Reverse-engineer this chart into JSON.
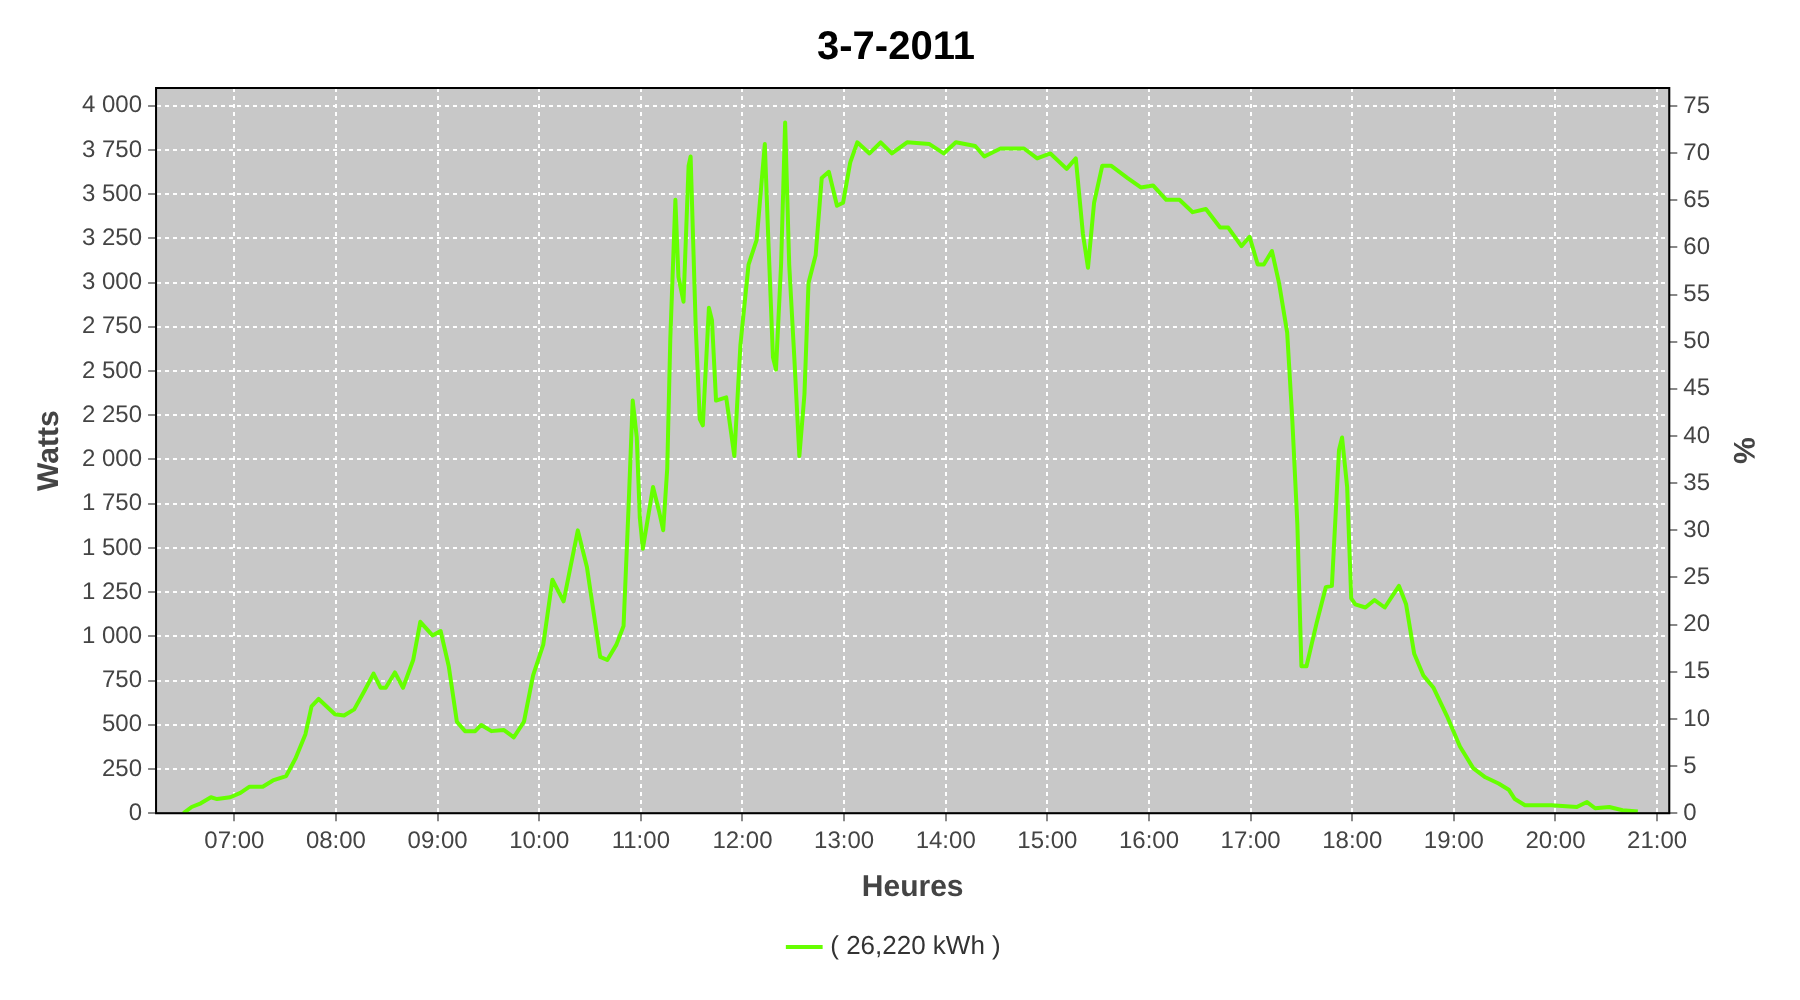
{
  "chart_data": {
    "type": "line",
    "title": "3-7-2011",
    "xlabel": "Heures",
    "ylabel": "Watts",
    "y2label": "%",
    "xlim": [
      6.23,
      21.12
    ],
    "xticks": [
      {
        "value": 7,
        "label": "07:00"
      },
      {
        "value": 8,
        "label": "08:00"
      },
      {
        "value": 9,
        "label": "09:00"
      },
      {
        "value": 10,
        "label": "10:00"
      },
      {
        "value": 11,
        "label": "11:00"
      },
      {
        "value": 12,
        "label": "12:00"
      },
      {
        "value": 13,
        "label": "13:00"
      },
      {
        "value": 14,
        "label": "14:00"
      },
      {
        "value": 15,
        "label": "15:00"
      },
      {
        "value": 16,
        "label": "16:00"
      },
      {
        "value": 17,
        "label": "17:00"
      },
      {
        "value": 18,
        "label": "18:00"
      },
      {
        "value": 19,
        "label": "19:00"
      },
      {
        "value": 20,
        "label": "20:00"
      },
      {
        "value": 21,
        "label": "21:00"
      }
    ],
    "ylim": [
      0,
      4100
    ],
    "yticks": [
      0,
      250,
      500,
      750,
      {
        "value": 1000,
        "label": "1 000"
      },
      {
        "value": 1250,
        "label": "1 250"
      },
      {
        "value": 1500,
        "label": "1 500"
      },
      {
        "value": 1750,
        "label": "1 750"
      },
      {
        "value": 2000,
        "label": "2 000"
      },
      {
        "value": 2250,
        "label": "2 250"
      },
      {
        "value": 2500,
        "label": "2 500"
      },
      {
        "value": 2750,
        "label": "2 750"
      },
      {
        "value": 3000,
        "label": "3 000"
      },
      {
        "value": 3250,
        "label": "3 250"
      },
      {
        "value": 3500,
        "label": "3 500"
      },
      {
        "value": 3750,
        "label": "3 750"
      },
      {
        "value": 4000,
        "label": "4 000"
      }
    ],
    "y2lim": [
      0,
      76.9
    ],
    "y2ticks": [
      0,
      5,
      10,
      15,
      20,
      25,
      30,
      35,
      40,
      45,
      50,
      55,
      60,
      65,
      70,
      75
    ],
    "grid": true,
    "legend": "bottom",
    "line_style": "solid",
    "series": [
      {
        "name": "( 26,220 kWh )",
        "color": "#66ff00",
        "x": [
          6.5,
          6.58,
          6.67,
          6.77,
          6.83,
          6.96,
          7.06,
          7.15,
          7.28,
          7.38,
          7.51,
          7.6,
          7.7,
          7.76,
          7.83,
          7.99,
          8.08,
          8.18,
          8.28,
          8.37,
          8.44,
          8.49,
          8.58,
          8.66,
          8.76,
          8.83,
          8.95,
          9.03,
          9.11,
          9.19,
          9.27,
          9.37,
          9.43,
          9.53,
          9.65,
          9.75,
          9.85,
          9.94,
          10.04,
          10.13,
          10.24,
          10.38,
          10.47,
          10.6,
          10.67,
          10.76,
          10.83,
          10.88,
          10.92,
          10.96,
          10.99,
          11.02,
          11.08,
          11.12,
          11.18,
          11.22,
          11.26,
          11.29,
          11.34,
          11.37,
          11.42,
          11.47,
          11.49,
          11.54,
          11.58,
          11.61,
          11.67,
          11.7,
          11.74,
          11.84,
          11.92,
          11.98,
          12.06,
          12.14,
          12.22,
          12.25,
          12.3,
          12.33,
          12.38,
          12.42,
          12.46,
          12.51,
          12.56,
          12.61,
          12.65,
          12.72,
          12.78,
          12.85,
          12.93,
          12.99,
          13.06,
          13.13,
          13.25,
          13.36,
          13.47,
          13.62,
          13.84,
          13.98,
          14.1,
          14.29,
          14.38,
          14.54,
          14.77,
          14.9,
          15.03,
          15.19,
          15.28,
          15.35,
          15.4,
          15.46,
          15.54,
          15.63,
          15.79,
          15.92,
          16.04,
          16.17,
          16.3,
          16.43,
          16.56,
          16.7,
          16.78,
          16.91,
          16.99,
          17.07,
          17.13,
          17.21,
          17.28,
          17.36,
          17.41,
          17.46,
          17.5,
          17.55,
          17.65,
          17.74,
          17.8,
          17.87,
          17.9,
          17.95,
          17.99,
          18.03,
          18.13,
          18.22,
          18.32,
          18.46,
          18.53,
          18.61,
          18.7,
          18.8,
          18.93,
          19.06,
          19.19,
          19.31,
          19.44,
          19.54,
          19.6,
          19.7,
          19.96,
          20.21,
          20.31,
          20.39,
          20.53,
          20.66,
          20.81
        ],
        "values": [
          0,
          35,
          56,
          90,
          80,
          90,
          115,
          150,
          150,
          185,
          210,
          307,
          447,
          604,
          646,
          559,
          552,
          587,
          691,
          789,
          709,
          709,
          796,
          709,
          866,
          1082,
          1005,
          1030,
          831,
          517,
          464,
          464,
          499,
          464,
          471,
          429,
          517,
          779,
          953,
          1320,
          1198,
          1599,
          1390,
          884,
          866,
          953,
          1058,
          1739,
          2333,
          2124,
          1670,
          1495,
          1705,
          1844,
          1705,
          1600,
          1949,
          2682,
          3468,
          3032,
          2892,
          3660,
          3713,
          2752,
          2228,
          2193,
          2857,
          2787,
          2333,
          2351,
          2019,
          2648,
          3102,
          3241,
          3783,
          3311,
          2578,
          2508,
          3102,
          3905,
          3102,
          2578,
          2019,
          2368,
          2997,
          3154,
          3591,
          3626,
          3434,
          3451,
          3678,
          3793,
          3730,
          3793,
          3730,
          3793,
          3783,
          3730,
          3793,
          3772,
          3713,
          3758,
          3758,
          3702,
          3730,
          3643,
          3702,
          3276,
          3084,
          3451,
          3660,
          3660,
          3591,
          3538,
          3549,
          3468,
          3468,
          3398,
          3416,
          3311,
          3311,
          3206,
          3259,
          3102,
          3102,
          3178,
          2997,
          2717,
          2228,
          1635,
          831,
          831,
          1076,
          1278,
          1285,
          2054,
          2124,
          1844,
          1215,
          1181,
          1163,
          1205,
          1163,
          1285,
          1181,
          901,
          779,
          709,
          552,
          377,
          255,
          203,
          168,
          133,
          80,
          45,
          45,
          35,
          63,
          28,
          35,
          17,
          10
        ]
      }
    ]
  }
}
